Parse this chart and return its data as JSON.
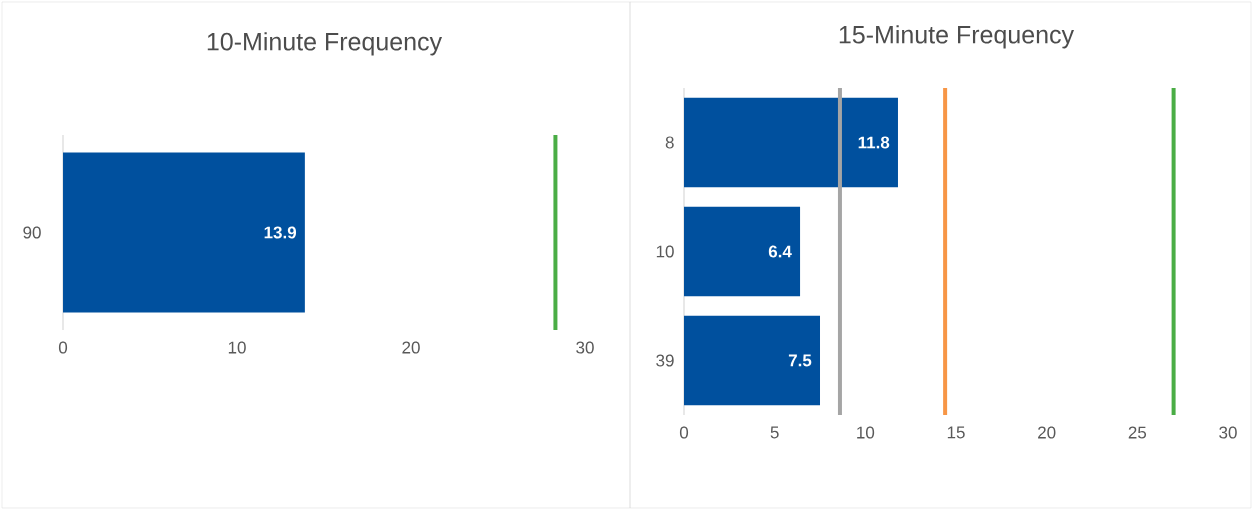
{
  "chart_data": [
    {
      "type": "bar",
      "orientation": "horizontal",
      "title": "10-Minute Frequency",
      "categories": [
        "90"
      ],
      "values": [
        13.9
      ],
      "color": "#00509e",
      "data_labels": true,
      "xlim": [
        0,
        30
      ],
      "xticks": [
        0,
        10,
        20,
        30
      ],
      "ref_lines": [
        {
          "axis": "x",
          "value": 28.3,
          "color": "#4aad45"
        }
      ]
    },
    {
      "type": "bar",
      "orientation": "horizontal",
      "title": "15-Minute Frequency",
      "categories": [
        "8",
        "10",
        "39"
      ],
      "values": [
        11.8,
        6.4,
        7.5
      ],
      "color": "#00509e",
      "data_labels": true,
      "xlim": [
        0,
        30
      ],
      "xticks": [
        0,
        5,
        10,
        15,
        20,
        25,
        30
      ],
      "ref_lines": [
        {
          "axis": "x",
          "value": 8.6,
          "color": "#a5a5a5"
        },
        {
          "axis": "x",
          "value": 14.4,
          "color": "#f79646"
        },
        {
          "axis": "x",
          "value": 27.0,
          "color": "#4aad45"
        }
      ]
    }
  ]
}
